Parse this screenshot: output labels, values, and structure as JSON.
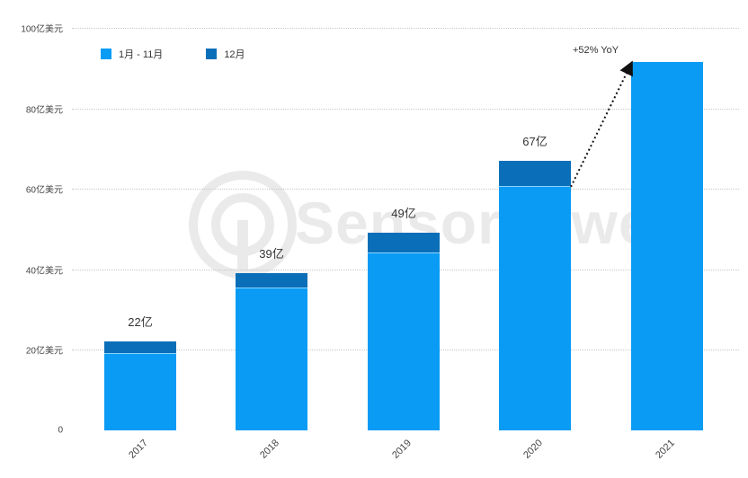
{
  "chart_data": {
    "type": "bar",
    "stacked": true,
    "title": "",
    "xlabel": "",
    "ylabel": "",
    "ylim": [
      0,
      100
    ],
    "y_ticks": [
      {
        "value": 0,
        "label": "0"
      },
      {
        "value": 20,
        "label": "20亿美元"
      },
      {
        "value": 40,
        "label": "40亿美元"
      },
      {
        "value": 60,
        "label": "60亿美元"
      },
      {
        "value": 80,
        "label": "80亿美元"
      },
      {
        "value": 100,
        "label": "100亿美元"
      }
    ],
    "categories": [
      "2017",
      "2018",
      "2019",
      "2020",
      "2021"
    ],
    "series": [
      {
        "name": "1月 - 11月",
        "color": "#0a9bf5",
        "values": [
          19,
          35.3,
          44,
          60.5,
          91.5
        ]
      },
      {
        "name": "12月",
        "color": "#0a6fb8",
        "values": [
          3,
          3.7,
          5,
          6.5,
          0
        ]
      }
    ],
    "totals": [
      22,
      39,
      49,
      67,
      91.5
    ],
    "data_labels": [
      "22亿",
      "39亿",
      "49亿",
      "67亿",
      ""
    ],
    "annotations": [
      {
        "text": "+52% YoY",
        "from": "2020 1月-11月 top",
        "to": "2021 top",
        "style": "dotted arrow"
      }
    ],
    "legend_position": "top-left",
    "grid": "horizontal dotted",
    "watermark": "SensorTower"
  },
  "legend": {
    "items": [
      {
        "label": "1月 - 11月",
        "color": "#0a9bf5"
      },
      {
        "label": "12月",
        "color": "#0a6fb8"
      }
    ]
  },
  "annotation": {
    "label": "+52% YoY"
  },
  "watermark": {
    "label": "SensorTower"
  }
}
